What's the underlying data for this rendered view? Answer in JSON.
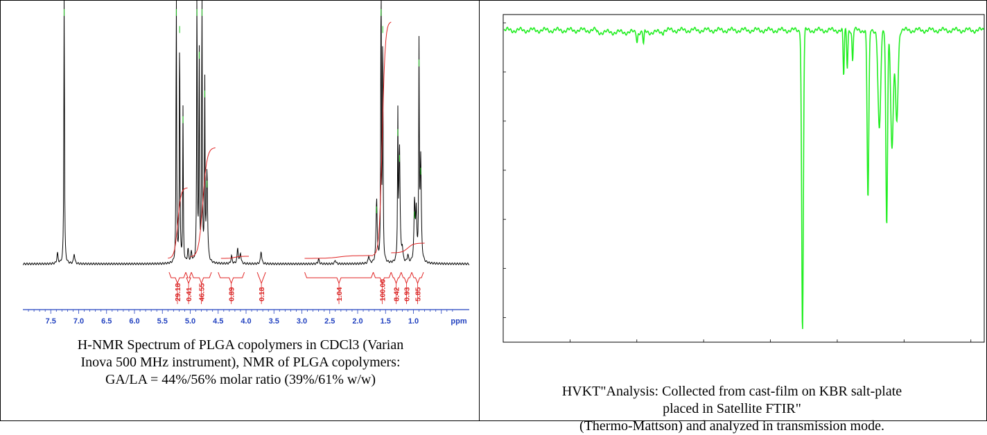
{
  "colors": {
    "nmr_trace": "#000000",
    "integral_curve": "#e02020",
    "peak_marker": "#22cc22",
    "axis": "#1f3fbf",
    "integral_label": "#d92020",
    "ftir_trace": "#22ee22"
  },
  "nmr": {
    "caption": [
      "H-NMR Spectrum of PLGA copolymers in CDCl3 (Varian",
      "Inova 500 MHz instrument), NMR of PLGA copolymers:",
      "GA/LA = 44%/56% molar ratio (39%/61% w/w)"
    ]
  },
  "ftir": {
    "caption": [
      "HVKT\"Analysis: Collected from cast-film on KBR salt-plate",
      "placed in Satellite FTIR\"",
      "(Thermo-Mattson) and analyzed in transmission mode."
    ]
  },
  "chart_data": [
    {
      "type": "line",
      "chart": "1H-NMR spectrum",
      "xlabel": "ppm",
      "xlim": [
        8.0,
        0.0
      ],
      "x_reversed": true,
      "tick_labels": [
        "7.5",
        "7.0",
        "6.5",
        "6.0",
        "5.5",
        "5.0",
        "4.5",
        "4.0",
        "3.5",
        "3.0",
        "2.5",
        "2.0",
        "1.5",
        "1.0"
      ],
      "tick_values": [
        7.5,
        7.0,
        6.5,
        6.0,
        5.5,
        5.0,
        4.5,
        4.0,
        3.5,
        3.0,
        2.5,
        2.0,
        1.5,
        1.0
      ],
      "peaks": [
        {
          "ppm": 7.38,
          "height": 0.04
        },
        {
          "ppm": 7.26,
          "height": 1.2
        },
        {
          "ppm": 7.08,
          "height": 0.04
        },
        {
          "ppm": 5.25,
          "height": 1.1
        },
        {
          "ppm": 5.19,
          "height": 0.95
        },
        {
          "ppm": 5.13,
          "height": 0.6
        },
        {
          "ppm": 5.04,
          "height": 0.05
        },
        {
          "ppm": 4.98,
          "height": 0.04
        },
        {
          "ppm": 4.88,
          "height": 1.15
        },
        {
          "ppm": 4.84,
          "height": 0.85
        },
        {
          "ppm": 4.79,
          "height": 1.2
        },
        {
          "ppm": 4.74,
          "height": 0.7
        },
        {
          "ppm": 4.7,
          "height": 0.35
        },
        {
          "ppm": 4.26,
          "height": 0.03
        },
        {
          "ppm": 4.15,
          "height": 0.06
        },
        {
          "ppm": 4.1,
          "height": 0.04
        },
        {
          "ppm": 3.73,
          "height": 0.05
        },
        {
          "ppm": 2.7,
          "height": 0.02
        },
        {
          "ppm": 2.4,
          "height": 0.015
        },
        {
          "ppm": 1.8,
          "height": 0.03
        },
        {
          "ppm": 1.66,
          "height": 0.25
        },
        {
          "ppm": 1.58,
          "height": 1.25
        },
        {
          "ppm": 1.55,
          "height": 0.95
        },
        {
          "ppm": 1.28,
          "height": 0.55
        },
        {
          "ppm": 1.25,
          "height": 0.45
        },
        {
          "ppm": 1.2,
          "height": 0.05
        },
        {
          "ppm": 1.1,
          "height": 0.03
        },
        {
          "ppm": 0.98,
          "height": 0.23
        },
        {
          "ppm": 0.95,
          "height": 0.18
        },
        {
          "ppm": 0.9,
          "height": 0.82
        },
        {
          "ppm": 0.87,
          "height": 0.4
        }
      ],
      "integrals": [
        {
          "label": "29.18",
          "from": 5.38,
          "to": 5.08
        },
        {
          "label": "0.41",
          "from": 5.08,
          "to": 4.98
        },
        {
          "label": "46.55",
          "from": 4.98,
          "to": 4.62
        },
        {
          "label": "0.89",
          "from": 4.5,
          "to": 4.03
        },
        {
          "label": "0.18",
          "from": 3.8,
          "to": 3.65
        },
        {
          "label": "1.04",
          "from": 2.95,
          "to": 1.72
        },
        {
          "label": "100.00",
          "from": 1.72,
          "to": 1.4
        },
        {
          "label": "8.42",
          "from": 1.4,
          "to": 1.22
        },
        {
          "label": "0.93",
          "from": 1.22,
          "to": 1.03
        },
        {
          "label": "5.85",
          "from": 1.03,
          "to": 0.82
        }
      ]
    },
    {
      "type": "line",
      "chart": "FTIR transmission spectrum",
      "xlim": [
        4000,
        400
      ],
      "x_reversed": true,
      "ylim": [
        35,
        100
      ],
      "tick_values_x": [
        3500,
        3000,
        2500,
        2000,
        1500,
        1000,
        500
      ],
      "tick_values_y": [
        40,
        50,
        60,
        70,
        80,
        90,
        100
      ],
      "baseline_percent_T": 98.5,
      "bands": [
        {
          "wavenumber": 2998,
          "percent_t": 96.6
        },
        {
          "wavenumber": 2950,
          "percent_t": 96.0
        },
        {
          "wavenumber": 1760,
          "percent_t": 37
        },
        {
          "wavenumber": 1452,
          "percent_t": 89
        },
        {
          "wavenumber": 1425,
          "percent_t": 91
        },
        {
          "wavenumber": 1385,
          "percent_t": 92
        },
        {
          "wavenumber": 1270,
          "percent_t": 64
        },
        {
          "wavenumber": 1185,
          "percent_t": 78
        },
        {
          "wavenumber": 1130,
          "percent_t": 59
        },
        {
          "wavenumber": 1090,
          "percent_t": 74
        },
        {
          "wavenumber": 1055,
          "percent_t": 80
        }
      ]
    }
  ]
}
